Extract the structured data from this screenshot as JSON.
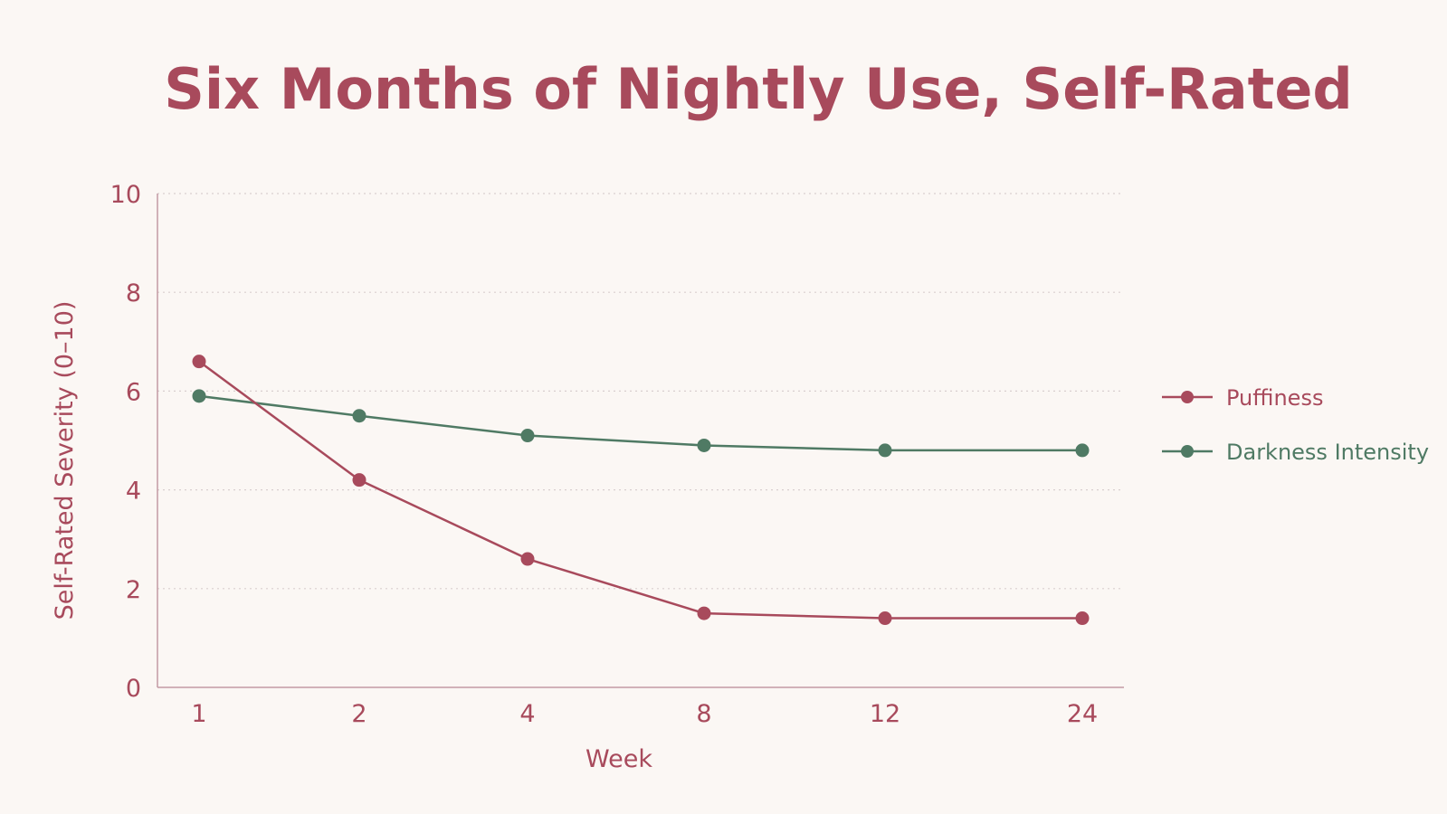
{
  "colors": {
    "background": "#fbf7f4",
    "accent": "#a84a5c",
    "series_puffiness": "#a84a5c",
    "series_darkness": "#4f7a64",
    "axis": "#c39aa3",
    "grid": "#d9cfcf"
  },
  "chart_data": {
    "type": "line",
    "title": "Six Months of Nightly Use, Self-Rated",
    "xlabel": "Week",
    "ylabel": "Self-Rated Severity (0–10)",
    "categories": [
      "1",
      "2",
      "4",
      "8",
      "12",
      "24"
    ],
    "x": [
      1,
      2,
      4,
      8,
      12,
      24
    ],
    "ylim": [
      0,
      10
    ],
    "yticks": [
      "0",
      "2",
      "4",
      "6",
      "8",
      "10"
    ],
    "grid": true,
    "legend_position": "right",
    "series": [
      {
        "name": "Puffiness",
        "values": [
          6.6,
          4.2,
          2.6,
          1.5,
          1.4,
          1.4
        ],
        "color": "#a84a5c"
      },
      {
        "name": "Darkness Intensity",
        "values": [
          5.9,
          5.5,
          5.1,
          4.9,
          4.8,
          4.8
        ],
        "color": "#4f7a64"
      }
    ]
  }
}
